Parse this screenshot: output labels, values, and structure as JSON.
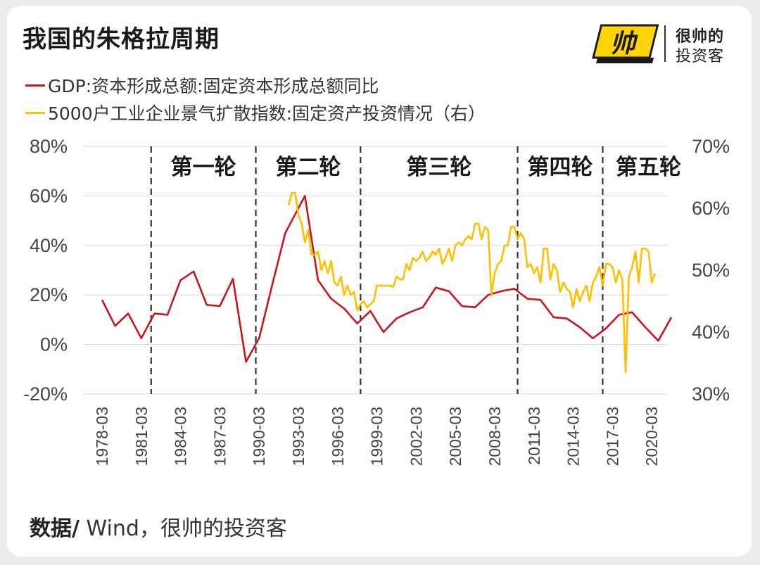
{
  "title": "我国的朱格拉周期",
  "brand": {
    "logo_text": "帅",
    "line1": "很帅的",
    "line2": "投资客"
  },
  "legend": [
    {
      "label": "GDP:资本形成总额:固定资本形成总额同比",
      "color": "#c8161d"
    },
    {
      "label": "5000户工业企业景气扩散指数:固定资产投资情况（右）",
      "color": "#ffbf00"
    }
  ],
  "source": {
    "prefix": "数据/",
    "text": " Wind，很帅的投资客"
  },
  "chart_data": {
    "type": "line",
    "left_axis": {
      "min": -20,
      "max": 80,
      "ticks": [
        "80%",
        "60%",
        "40%",
        "20%",
        "0%",
        "-20%"
      ]
    },
    "right_axis": {
      "min": 30,
      "max": 70,
      "ticks": [
        "70%",
        "60%",
        "50%",
        "40%",
        "30%"
      ]
    },
    "x_ticks": [
      "1978-03",
      "1981-03",
      "1984-03",
      "1987-03",
      "1990-03",
      "1993-03",
      "1996-03",
      "1999-03",
      "2002-03",
      "2005-03",
      "2008-03",
      "2011-03",
      "2014-03",
      "2017-03",
      "2020-03"
    ],
    "cycle_boundaries": [
      1981.75,
      1989.75,
      1997.75,
      2009.75,
      2016.25
    ],
    "periods": [
      {
        "label": "第一轮",
        "year": 1985.75
      },
      {
        "label": "第二轮",
        "year": 1993.75
      },
      {
        "label": "第三轮",
        "year": 2003.75
      },
      {
        "label": "第四轮",
        "year": 2013.0
      },
      {
        "label": "第五轮",
        "year": 2019.75
      }
    ],
    "series": [
      {
        "name": "GDP:资本形成总额:固定资本形成总额同比",
        "axis": "left",
        "color": "#c8161d",
        "points": [
          [
            1978,
            18
          ],
          [
            1979,
            7.5
          ],
          [
            1980,
            12.5
          ],
          [
            1981,
            2.5
          ],
          [
            1982,
            12.5
          ],
          [
            1983,
            12
          ],
          [
            1984,
            26
          ],
          [
            1985,
            29.5
          ],
          [
            1986,
            16
          ],
          [
            1987,
            15.5
          ],
          [
            1988,
            26.5
          ],
          [
            1989,
            -7
          ],
          [
            1990,
            2.5
          ],
          [
            1991,
            24
          ],
          [
            1992,
            45
          ],
          [
            1993.5,
            60
          ],
          [
            1994.5,
            26
          ],
          [
            1995.5,
            18.5
          ],
          [
            1996.5,
            14.5
          ],
          [
            1997.5,
            8.5
          ],
          [
            1998.5,
            13.5
          ],
          [
            1999.5,
            5
          ],
          [
            2000.5,
            10.5
          ],
          [
            2001.5,
            13
          ],
          [
            2002.5,
            15
          ],
          [
            2003.5,
            23
          ],
          [
            2004.5,
            21.5
          ],
          [
            2005.5,
            15.5
          ],
          [
            2006.5,
            15
          ],
          [
            2007.5,
            20
          ],
          [
            2008.5,
            21.5
          ],
          [
            2009.5,
            22.5
          ],
          [
            2010.5,
            18.5
          ],
          [
            2011.5,
            18
          ],
          [
            2012.5,
            11
          ],
          [
            2013.5,
            10.5
          ],
          [
            2014.5,
            7
          ],
          [
            2015.5,
            2.5
          ],
          [
            2016.5,
            6.5
          ],
          [
            2017.5,
            12
          ],
          [
            2018.5,
            13
          ],
          [
            2019.5,
            7
          ],
          [
            2020.5,
            1.5
          ],
          [
            2021.5,
            11
          ]
        ]
      },
      {
        "name": "5000户工业企业景气扩散指数:固定资产投资情况（右）",
        "axis": "right",
        "color": "#ffbf00",
        "points": [
          [
            1992.25,
            60.5
          ],
          [
            1992.5,
            62.5
          ],
          [
            1992.75,
            62.5
          ],
          [
            1993.0,
            59
          ],
          [
            1993.25,
            57.5
          ],
          [
            1993.5,
            54.5
          ],
          [
            1993.75,
            56.5
          ],
          [
            1994.0,
            52.5
          ],
          [
            1994.25,
            52.5
          ],
          [
            1994.5,
            53
          ],
          [
            1994.75,
            50
          ],
          [
            1995.0,
            51.5
          ],
          [
            1995.25,
            49.5
          ],
          [
            1995.5,
            51.5
          ],
          [
            1995.75,
            48
          ],
          [
            1996.0,
            47.5
          ],
          [
            1996.25,
            49
          ],
          [
            1996.5,
            46
          ],
          [
            1996.75,
            47.5
          ],
          [
            1997.0,
            46
          ],
          [
            1997.25,
            46.5
          ],
          [
            1997.5,
            43.5
          ],
          [
            1997.75,
            44.5
          ],
          [
            1998.0,
            45
          ],
          [
            1998.25,
            44
          ],
          [
            1998.5,
            44.5
          ],
          [
            1998.75,
            45
          ],
          [
            1999.0,
            47.5
          ],
          [
            1999.5,
            47.5
          ],
          [
            2000.0,
            47.5
          ],
          [
            2000.25,
            47.3
          ],
          [
            2000.5,
            49
          ],
          [
            2000.75,
            48.5
          ],
          [
            2001.0,
            48.5
          ],
          [
            2001.25,
            51
          ],
          [
            2001.5,
            50
          ],
          [
            2001.75,
            52
          ],
          [
            2002.0,
            51.5
          ],
          [
            2002.25,
            52
          ],
          [
            2002.5,
            53
          ],
          [
            2002.75,
            51.5
          ],
          [
            2003.0,
            52
          ],
          [
            2003.25,
            53
          ],
          [
            2003.5,
            52.5
          ],
          [
            2003.75,
            53.5
          ],
          [
            2004.0,
            51
          ],
          [
            2004.25,
            52
          ],
          [
            2004.5,
            53.5
          ],
          [
            2004.75,
            51.5
          ],
          [
            2005.0,
            54
          ],
          [
            2005.25,
            54.5
          ],
          [
            2005.5,
            54
          ],
          [
            2005.75,
            55
          ],
          [
            2006.0,
            55.5
          ],
          [
            2006.25,
            55
          ],
          [
            2006.5,
            57.5
          ],
          [
            2006.75,
            57.5
          ],
          [
            2007.0,
            55
          ],
          [
            2007.25,
            57
          ],
          [
            2007.5,
            56.5
          ],
          [
            2007.75,
            46
          ],
          [
            2008.0,
            49.5
          ],
          [
            2008.25,
            51
          ],
          [
            2008.5,
            51.5
          ],
          [
            2008.75,
            54
          ],
          [
            2009.0,
            54
          ],
          [
            2009.25,
            57
          ],
          [
            2009.5,
            57
          ],
          [
            2009.75,
            55
          ],
          [
            2010.0,
            56
          ],
          [
            2010.25,
            55
          ],
          [
            2010.5,
            50.5
          ],
          [
            2010.75,
            51
          ],
          [
            2011.0,
            49.5
          ],
          [
            2011.25,
            50.5
          ],
          [
            2011.5,
            48
          ],
          [
            2011.75,
            53.5
          ],
          [
            2012.0,
            53.5
          ],
          [
            2012.25,
            48.5
          ],
          [
            2012.5,
            51
          ],
          [
            2012.75,
            50
          ],
          [
            2013.0,
            46.5
          ],
          [
            2013.25,
            48
          ],
          [
            2013.5,
            47
          ],
          [
            2013.75,
            46.5
          ],
          [
            2014.0,
            44
          ],
          [
            2014.25,
            47
          ],
          [
            2014.5,
            45
          ],
          [
            2014.75,
            46.5
          ],
          [
            2015.0,
            47.5
          ],
          [
            2015.25,
            45
          ],
          [
            2015.5,
            48
          ],
          [
            2015.75,
            49
          ],
          [
            2016.0,
            50.5
          ],
          [
            2016.25,
            47.5
          ],
          [
            2016.5,
            51
          ],
          [
            2016.75,
            51
          ],
          [
            2017.0,
            50.5
          ],
          [
            2017.25,
            48
          ],
          [
            2017.5,
            50
          ],
          [
            2017.75,
            48.5
          ],
          [
            2018.0,
            33.5
          ],
          [
            2018.25,
            49
          ],
          [
            2018.5,
            50.5
          ],
          [
            2018.75,
            53
          ],
          [
            2019.0,
            48
          ],
          [
            2019.25,
            53.5
          ],
          [
            2019.5,
            53.5
          ],
          [
            2019.75,
            53
          ],
          [
            2020.0,
            48
          ],
          [
            2020.25,
            49.5
          ]
        ]
      }
    ]
  }
}
